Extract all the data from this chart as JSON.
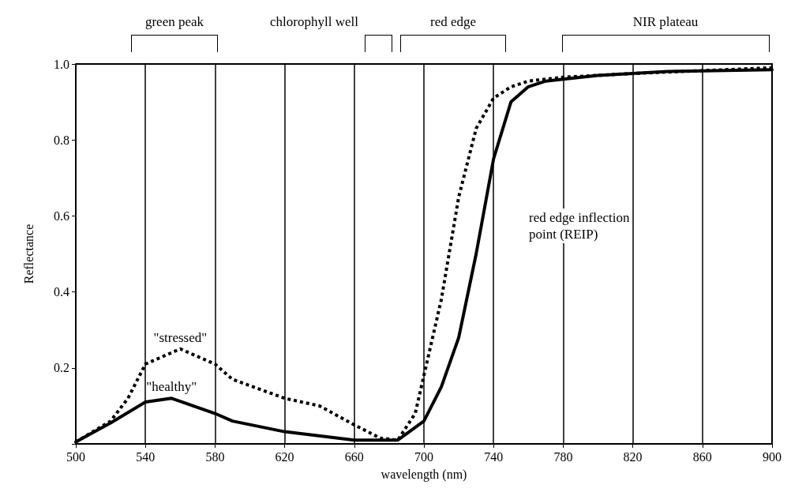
{
  "chart_data": {
    "type": "line",
    "xlabel": "wavelength (nm)",
    "ylabel": "Reflectance",
    "xlim": [
      500,
      900
    ],
    "xticks": [
      500,
      540,
      580,
      620,
      660,
      700,
      740,
      780,
      820,
      860,
      900
    ],
    "ylim": [
      0,
      1
    ],
    "yticks": [
      {
        "value": 0,
        "label": null
      },
      {
        "value": 0.2,
        "label": "0.2"
      },
      {
        "value": 0.4,
        "label": "0.4"
      },
      {
        "value": 0.6,
        "label": "0.6"
      },
      {
        "value": 0.8,
        "label": "0.8"
      },
      {
        "value": 1,
        "label": "1.0"
      }
    ],
    "grid": "x",
    "legend": false,
    "marker": "none",
    "series": [
      {
        "name": "\"stressed\"",
        "color": "#000000",
        "line_style": "dotted",
        "x": [
          500,
          520,
          530,
          540,
          560,
          580,
          590,
          620,
          640,
          660,
          675,
          685,
          695,
          700,
          710,
          720,
          730,
          740,
          750,
          760,
          780,
          820,
          900
        ],
        "values": [
          0.005,
          0.06,
          0.12,
          0.21,
          0.25,
          0.21,
          0.17,
          0.12,
          0.1,
          0.05,
          0.015,
          0.01,
          0.08,
          0.18,
          0.38,
          0.65,
          0.83,
          0.91,
          0.94,
          0.955,
          0.965,
          0.975,
          0.99
        ]
      },
      {
        "name": "\"healthy\"",
        "color": "#000000",
        "line_style": "solid",
        "x": [
          500,
          520,
          540,
          555,
          580,
          590,
          620,
          660,
          685,
          700,
          710,
          720,
          730,
          740,
          750,
          760,
          770,
          780,
          800,
          840,
          900
        ],
        "values": [
          0.005,
          0.055,
          0.11,
          0.12,
          0.08,
          0.06,
          0.032,
          0.01,
          0.01,
          0.06,
          0.15,
          0.28,
          0.5,
          0.75,
          0.9,
          0.94,
          0.955,
          0.96,
          0.97,
          0.98,
          0.985
        ]
      }
    ],
    "annotations": [
      "green peak",
      "chlorophyll well",
      "red edge",
      "NIR plateau",
      "red edge inflection\npoint (REIP)"
    ]
  }
}
